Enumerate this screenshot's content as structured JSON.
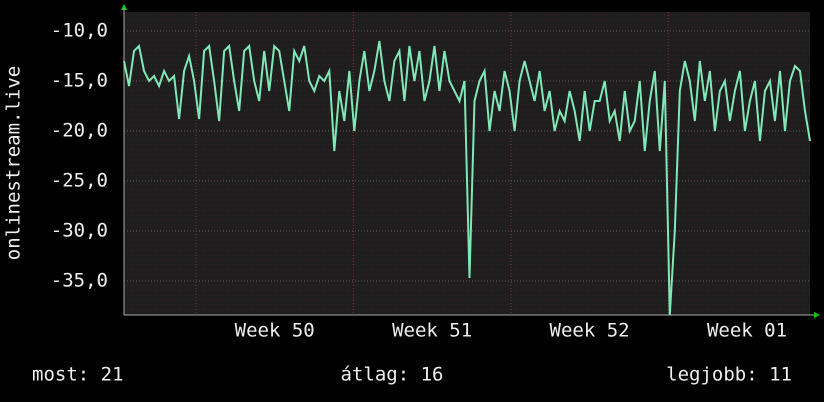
{
  "chart_data": {
    "type": "line",
    "y_label": "onlinestream.live",
    "series": [
      {
        "name": "onlinestream.live",
        "color": "#7fe8b6",
        "values": [
          -13,
          -15.5,
          -12,
          -11.5,
          -14,
          -15,
          -14.5,
          -15.5,
          -14,
          -15,
          -14.5,
          -18.8,
          -14,
          -12.5,
          -15,
          -18.8,
          -12,
          -11.5,
          -15,
          -19,
          -12,
          -11.5,
          -15,
          -18,
          -12,
          -11.5,
          -15,
          -17,
          -12,
          -16,
          -11.5,
          -12,
          -15,
          -18,
          -12,
          -13,
          -11.5,
          -15,
          -16,
          -14.5,
          -15,
          -14,
          -22,
          -16,
          -19,
          -14,
          -20,
          -15,
          -12,
          -16,
          -14,
          -11,
          -15,
          -17,
          -13,
          -12,
          -17,
          -11.5,
          -15,
          -12,
          -17,
          -15,
          -11.5,
          -16,
          -12,
          -15,
          -16,
          -17,
          -15,
          -34.7,
          -17,
          -15,
          -14,
          -20,
          -16,
          -18,
          -14,
          -16,
          -20,
          -15,
          -13,
          -15,
          -17,
          -14,
          -18,
          -16,
          -20,
          -18,
          -19,
          -16,
          -18,
          -21,
          -16,
          -20,
          -17,
          -17,
          -15,
          -19,
          -18,
          -21,
          -16,
          -20,
          -19,
          -15,
          -22,
          -17,
          -14,
          -22,
          -15,
          -38.4,
          -30,
          -16,
          -13,
          -15,
          -19,
          -13,
          -17,
          -14,
          -20,
          -16,
          -15,
          -19,
          -16,
          -14,
          -20,
          -17,
          -15,
          -21,
          -16,
          -15,
          -19,
          -14,
          -20,
          -15,
          -13.5,
          -14,
          -18,
          -21
        ]
      }
    ],
    "ylim": [
      -38.4,
      -8.1
    ],
    "yticks": [
      {
        "value": -10,
        "label": "-10,0"
      },
      {
        "value": -15,
        "label": "-15,0"
      },
      {
        "value": -20,
        "label": "-20,0"
      },
      {
        "value": -25,
        "label": "-25,0"
      },
      {
        "value": -30,
        "label": "-30,0"
      },
      {
        "value": -35,
        "label": "-35,0"
      }
    ],
    "xlim": [
      0,
      30.5
    ],
    "xticks": [
      {
        "value": 6.7,
        "label": "Week 50"
      },
      {
        "value": 13.7,
        "label": "Week 51"
      },
      {
        "value": 20.7,
        "label": "Week 52"
      },
      {
        "value": 27.7,
        "label": "Week 01"
      }
    ],
    "xgrid": [
      3.2,
      10.2,
      17.2,
      24.2
    ],
    "grid": true,
    "footer": {
      "current": "most: 21",
      "average": "átlag: 16",
      "best": "legjobb: 11"
    }
  }
}
